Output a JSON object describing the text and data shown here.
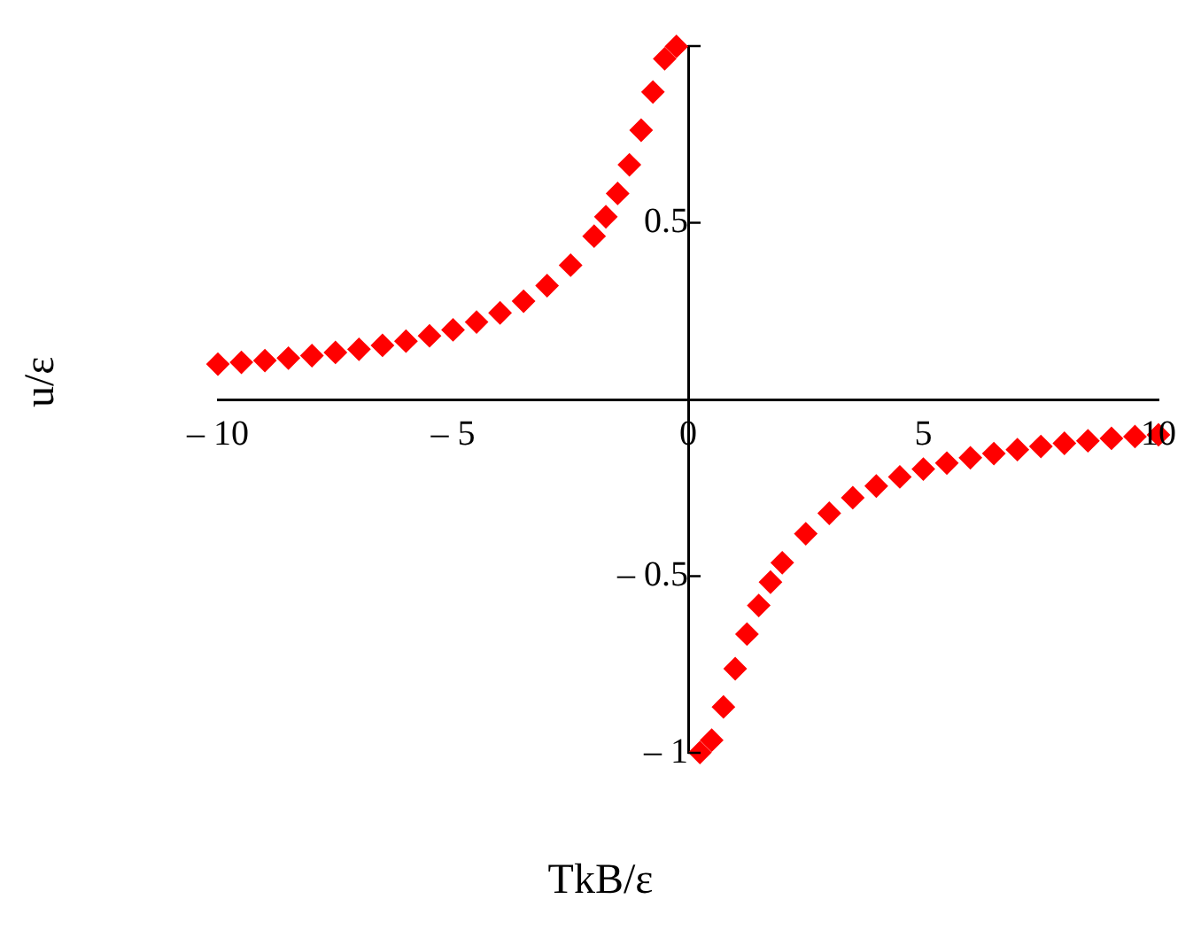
{
  "chart_data": {
    "type": "scatter",
    "xlabel": "TkB/ε",
    "ylabel": "u/ε",
    "marker": "diamond",
    "grid": false,
    "legend": false,
    "xlim": [
      -10,
      10
    ],
    "xticks": [
      {
        "value": -10,
        "label": "– 10"
      },
      {
        "value": -5,
        "label": "– 5"
      },
      0,
      5,
      10
    ],
    "ylim": [
      -1,
      1
    ],
    "yticks": [
      {
        "value": -1,
        "label": "– 1"
      },
      {
        "value": -0.5,
        "label": "– 0.5"
      },
      0.5,
      {
        "value": 1,
        "label": null
      }
    ],
    "series": [
      {
        "color": "#ff0000",
        "x": [
          -10,
          -9.5,
          -9,
          -8.5,
          -8,
          -7.5,
          -7,
          -6.5,
          -6,
          -5.5,
          -5,
          -4.5,
          -4,
          -3.5,
          -3,
          -2.5,
          -2,
          -1.75,
          -1.5,
          -1.25,
          -1,
          -0.75,
          -0.5,
          -0.25,
          0.25,
          0.5,
          0.75,
          1,
          1.25,
          1.5,
          1.75,
          2,
          2.5,
          3,
          3.5,
          4,
          4.5,
          5,
          5.5,
          6,
          6.5,
          7,
          7.5,
          8,
          8.5,
          9,
          9.5,
          10
        ],
        "values": [
          0.1,
          0.105,
          0.11,
          0.117,
          0.124,
          0.133,
          0.142,
          0.153,
          0.165,
          0.18,
          0.197,
          0.219,
          0.245,
          0.278,
          0.322,
          0.38,
          0.462,
          0.517,
          0.583,
          0.664,
          0.762,
          0.87,
          0.964,
          0.999,
          -0.999,
          -0.964,
          -0.87,
          -0.762,
          -0.664,
          -0.583,
          -0.517,
          -0.462,
          -0.38,
          -0.322,
          -0.278,
          -0.245,
          -0.219,
          -0.197,
          -0.18,
          -0.165,
          -0.153,
          -0.142,
          -0.133,
          -0.124,
          -0.117,
          -0.11,
          -0.105,
          -0.1
        ]
      }
    ]
  }
}
